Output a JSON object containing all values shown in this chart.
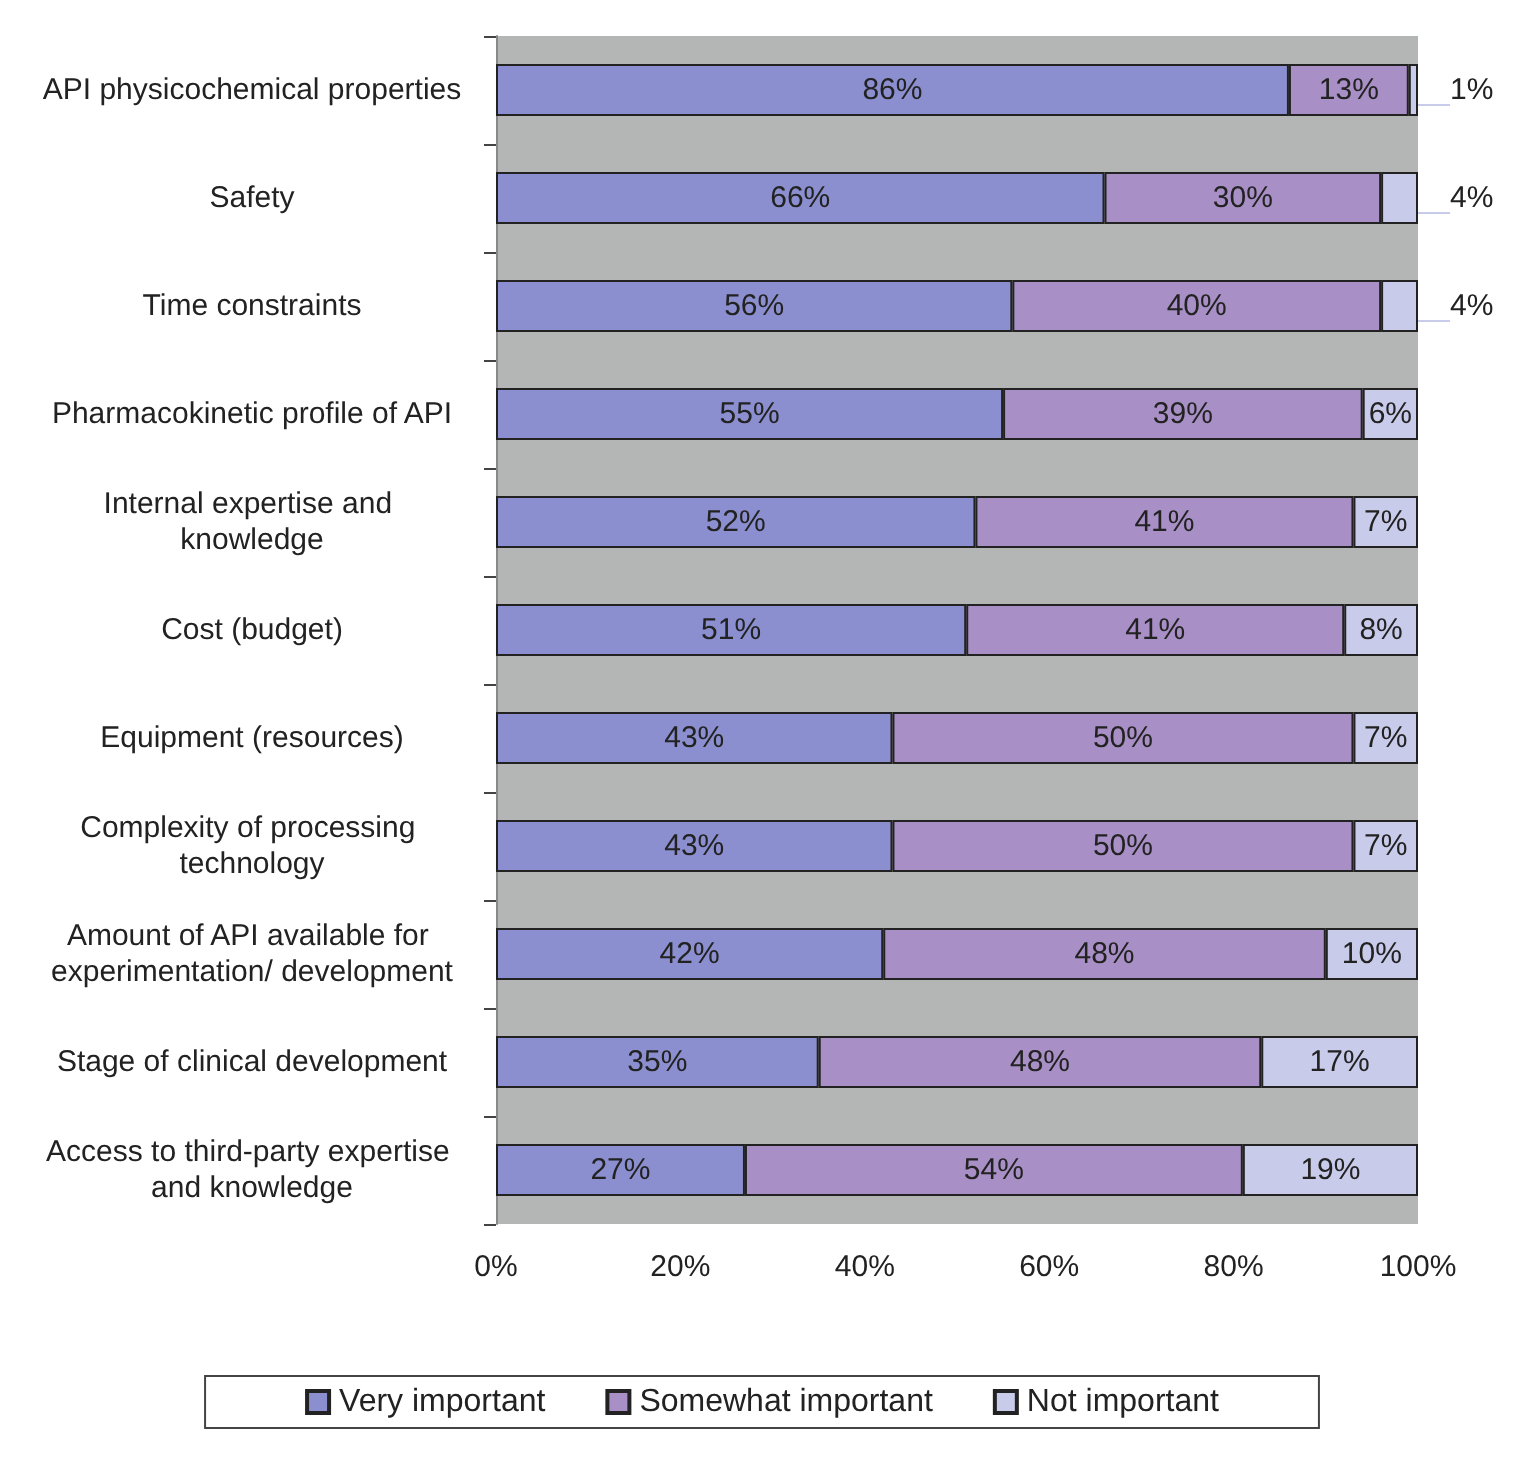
{
  "chart_data": {
    "type": "bar",
    "orientation": "horizontal",
    "stacked": true,
    "categories": [
      "API physicochemical properties",
      "Safety",
      "Time constraints",
      "Pharmacokinetic profile of API",
      "Internal expertise and knowledge",
      "Cost (budget)",
      "Equipment (resources)",
      "Complexity of processing technology",
      "Amount of API available for experimentation/ development",
      "Stage of clinical development",
      "Access to third-party expertise and knowledge"
    ],
    "series": [
      {
        "name": "Very important",
        "color": "#8b8fcf",
        "values": [
          86,
          66,
          56,
          55,
          52,
          51,
          43,
          43,
          42,
          35,
          27
        ],
        "value_labels": [
          "86%",
          "66%",
          "56%",
          "55%",
          "52%",
          "51%",
          "43%",
          "43%",
          "42%",
          "35%",
          "27%"
        ]
      },
      {
        "name": "Somewhat important",
        "color": "#a88fc6",
        "values": [
          13,
          30,
          40,
          39,
          41,
          41,
          50,
          50,
          48,
          48,
          54
        ],
        "value_labels": [
          "13%",
          "30%",
          "40%",
          "39%",
          "41%",
          "41%",
          "50%",
          "50%",
          "48%",
          "48%",
          "54%"
        ]
      },
      {
        "name": "Not important",
        "color": "#c9cbeb",
        "values": [
          1,
          4,
          4,
          6,
          7,
          8,
          7,
          7,
          10,
          17,
          19
        ],
        "value_labels": [
          "1%",
          "4%",
          "4%",
          "6%",
          "7%",
          "8%",
          "7%",
          "7%",
          "10%",
          "17%",
          "19%"
        ]
      }
    ],
    "xlim": [
      0,
      100
    ],
    "xticks": [
      {
        "value": 0,
        "label": "0%"
      },
      {
        "value": 20,
        "label": "20%"
      },
      {
        "value": 40,
        "label": "40%"
      },
      {
        "value": 60,
        "label": "60%"
      },
      {
        "value": 80,
        "label": "80%"
      },
      {
        "value": 100,
        "label": "100%"
      }
    ],
    "grid": false,
    "legend": "bottom"
  }
}
